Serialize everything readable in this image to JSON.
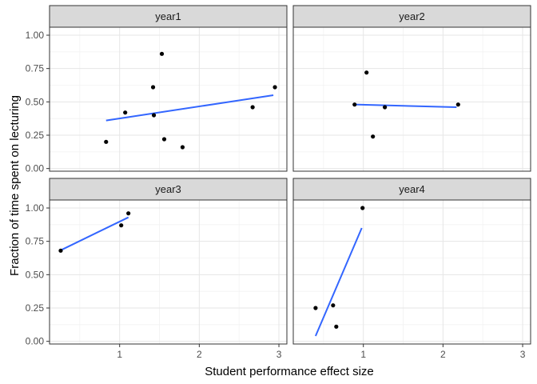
{
  "chart_data": {
    "type": "scatter",
    "xlabel": "Student performance effect size",
    "ylabel": "Fraction of time spent on lecturing",
    "xlim": [
      0.12,
      3.1
    ],
    "ylim": [
      -0.02,
      1.06
    ],
    "xticks": [
      1,
      2,
      3
    ],
    "yticks": [
      0.0,
      0.25,
      0.5,
      0.75,
      1.0
    ],
    "ytick_labels": [
      "0.00",
      "0.25",
      "0.50",
      "0.75",
      "1.00"
    ],
    "grid": true,
    "layout": "2x2 facets, shared axes",
    "colors": {
      "points": "#000000",
      "fit_line": "#3366FF",
      "strip_bg": "#D9D9D9"
    },
    "panels": [
      {
        "name": "year1",
        "points": [
          {
            "x": 0.83,
            "y": 0.2
          },
          {
            "x": 1.07,
            "y": 0.42
          },
          {
            "x": 1.42,
            "y": 0.61
          },
          {
            "x": 1.43,
            "y": 0.4
          },
          {
            "x": 1.53,
            "y": 0.86
          },
          {
            "x": 1.56,
            "y": 0.22
          },
          {
            "x": 1.79,
            "y": 0.16
          },
          {
            "x": 2.67,
            "y": 0.46
          },
          {
            "x": 2.95,
            "y": 0.61
          }
        ],
        "fit": [
          {
            "x": 0.83,
            "y": 0.36
          },
          {
            "x": 2.93,
            "y": 0.55
          }
        ]
      },
      {
        "name": "year2",
        "points": [
          {
            "x": 0.89,
            "y": 0.48
          },
          {
            "x": 1.04,
            "y": 0.72
          },
          {
            "x": 1.12,
            "y": 0.24
          },
          {
            "x": 1.27,
            "y": 0.46
          },
          {
            "x": 2.19,
            "y": 0.48
          }
        ],
        "fit": [
          {
            "x": 0.89,
            "y": 0.48
          },
          {
            "x": 2.17,
            "y": 0.46
          }
        ]
      },
      {
        "name": "year3",
        "points": [
          {
            "x": 0.26,
            "y": 0.68
          },
          {
            "x": 1.02,
            "y": 0.87
          },
          {
            "x": 1.11,
            "y": 0.96
          }
        ],
        "fit": [
          {
            "x": 0.25,
            "y": 0.68
          },
          {
            "x": 1.11,
            "y": 0.93
          }
        ]
      },
      {
        "name": "year4",
        "points": [
          {
            "x": 0.4,
            "y": 0.25
          },
          {
            "x": 0.62,
            "y": 0.27
          },
          {
            "x": 0.66,
            "y": 0.11
          },
          {
            "x": 0.99,
            "y": 1.0
          }
        ],
        "fit": [
          {
            "x": 0.4,
            "y": 0.04
          },
          {
            "x": 0.98,
            "y": 0.85
          }
        ]
      }
    ]
  }
}
